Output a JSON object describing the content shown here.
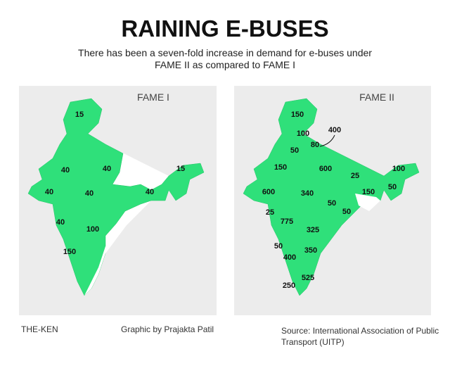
{
  "header": {
    "title": "RAINING E-BUSES",
    "subtitle": "There has been a seven-fold increase in demand for e-buses under FAME II as compared to FAME I"
  },
  "maps": [
    {
      "label": "FAME I",
      "values": [
        15,
        40,
        40,
        15,
        40,
        40,
        40,
        40,
        100,
        150
      ]
    },
    {
      "label": "FAME II",
      "values": [
        150,
        400,
        100,
        80,
        50,
        150,
        600,
        25,
        100,
        50,
        600,
        340,
        150,
        50,
        50,
        25,
        775,
        325,
        50,
        350,
        400,
        525,
        250
      ]
    }
  ],
  "footer": {
    "brand": "THE-KEN",
    "credit": "Graphic by Prajakta Patil",
    "source": "Source: International Association of Public Transport (UITP)"
  }
}
